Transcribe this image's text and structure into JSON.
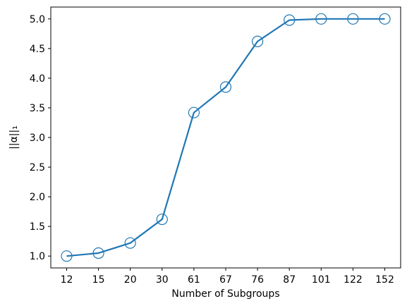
{
  "chart_data": {
    "type": "line",
    "title": "",
    "xlabel": "Number of Subgroups",
    "ylabel": "||α||₁",
    "categories": [
      "12",
      "15",
      "20",
      "30",
      "61",
      "67",
      "76",
      "87",
      "101",
      "122",
      "152"
    ],
    "series": [
      {
        "values": [
          1.0,
          1.05,
          1.22,
          1.62,
          3.42,
          3.85,
          4.62,
          4.98,
          5.0,
          5.0,
          5.0
        ],
        "color": "#1f77b4",
        "marker": "open-circle"
      }
    ],
    "ylim": [
      0.8,
      5.2
    ],
    "yticks": [
      "1.0",
      "1.5",
      "2.0",
      "2.5",
      "3.0",
      "3.5",
      "4.0",
      "4.5",
      "5.0"
    ],
    "grid": false,
    "legend": "none"
  }
}
